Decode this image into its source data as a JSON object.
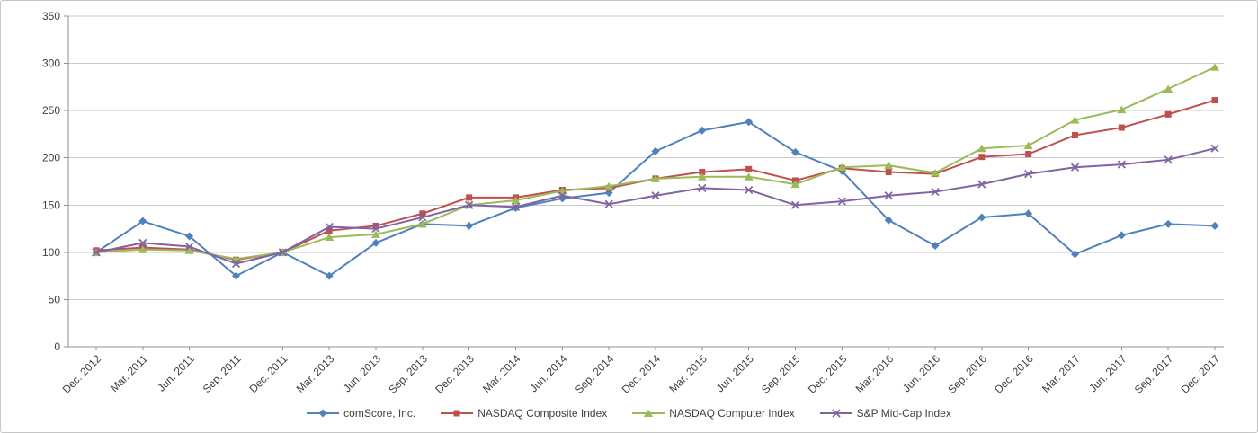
{
  "chart_data": {
    "type": "line",
    "title": "",
    "xlabel": "",
    "ylabel": "",
    "grid": true,
    "legend_position": "bottom",
    "ylim": [
      0,
      350
    ],
    "yticks": [
      0,
      50,
      100,
      150,
      200,
      250,
      300,
      350
    ],
    "categories": [
      "Dec. 2012",
      "Mar. 2011",
      "Jun. 2011",
      "Sep. 2011",
      "Dec. 2011",
      "Mar. 2013",
      "Jun. 2013",
      "Sep. 2013",
      "Dec. 2013",
      "Mar. 2014",
      "Jun. 2014",
      "Sep. 2014",
      "Dec. 2014",
      "Mar. 2015",
      "Jun. 2015",
      "Sep. 2015",
      "Dec. 2015",
      "Mar. 2016",
      "Jun. 2016",
      "Sep. 2016",
      "Dec. 2016",
      "Mar. 2017",
      "Jun. 2017",
      "Sep. 2017",
      "Dec. 2017"
    ],
    "series": [
      {
        "name": "comScore, Inc.",
        "color": "#4F81BD",
        "marker": "diamond",
        "values": [
          100,
          133,
          117,
          75,
          100,
          75,
          110,
          130,
          128,
          147,
          157,
          163,
          207,
          229,
          238,
          206,
          186,
          134,
          107,
          137,
          141,
          98,
          118,
          130,
          128
        ]
      },
      {
        "name": "NASDAQ Composite Index",
        "color": "#C0504D",
        "marker": "square",
        "values": [
          102,
          105,
          103,
          92,
          100,
          123,
          128,
          141,
          158,
          158,
          166,
          168,
          178,
          185,
          188,
          176,
          189,
          185,
          183,
          201,
          204,
          224,
          232,
          246,
          261
        ]
      },
      {
        "name": "NASDAQ Computer Index",
        "color": "#9BBB59",
        "marker": "triangle",
        "values": [
          100,
          103,
          102,
          93,
          100,
          116,
          119,
          130,
          150,
          155,
          165,
          170,
          178,
          180,
          180,
          172,
          190,
          192,
          184,
          210,
          213,
          240,
          251,
          273,
          296
        ]
      },
      {
        "name": "S&P Mid-Cap Index",
        "color": "#8064A2",
        "marker": "x",
        "values": [
          100,
          110,
          106,
          88,
          100,
          127,
          125,
          137,
          150,
          148,
          160,
          151,
          160,
          168,
          166,
          150,
          154,
          160,
          164,
          172,
          183,
          190,
          193,
          198,
          210
        ]
      }
    ],
    "axis_color": "#8f8f8f",
    "gridline_color": "#c9c9c9",
    "text_color": "#3f3f3f"
  }
}
